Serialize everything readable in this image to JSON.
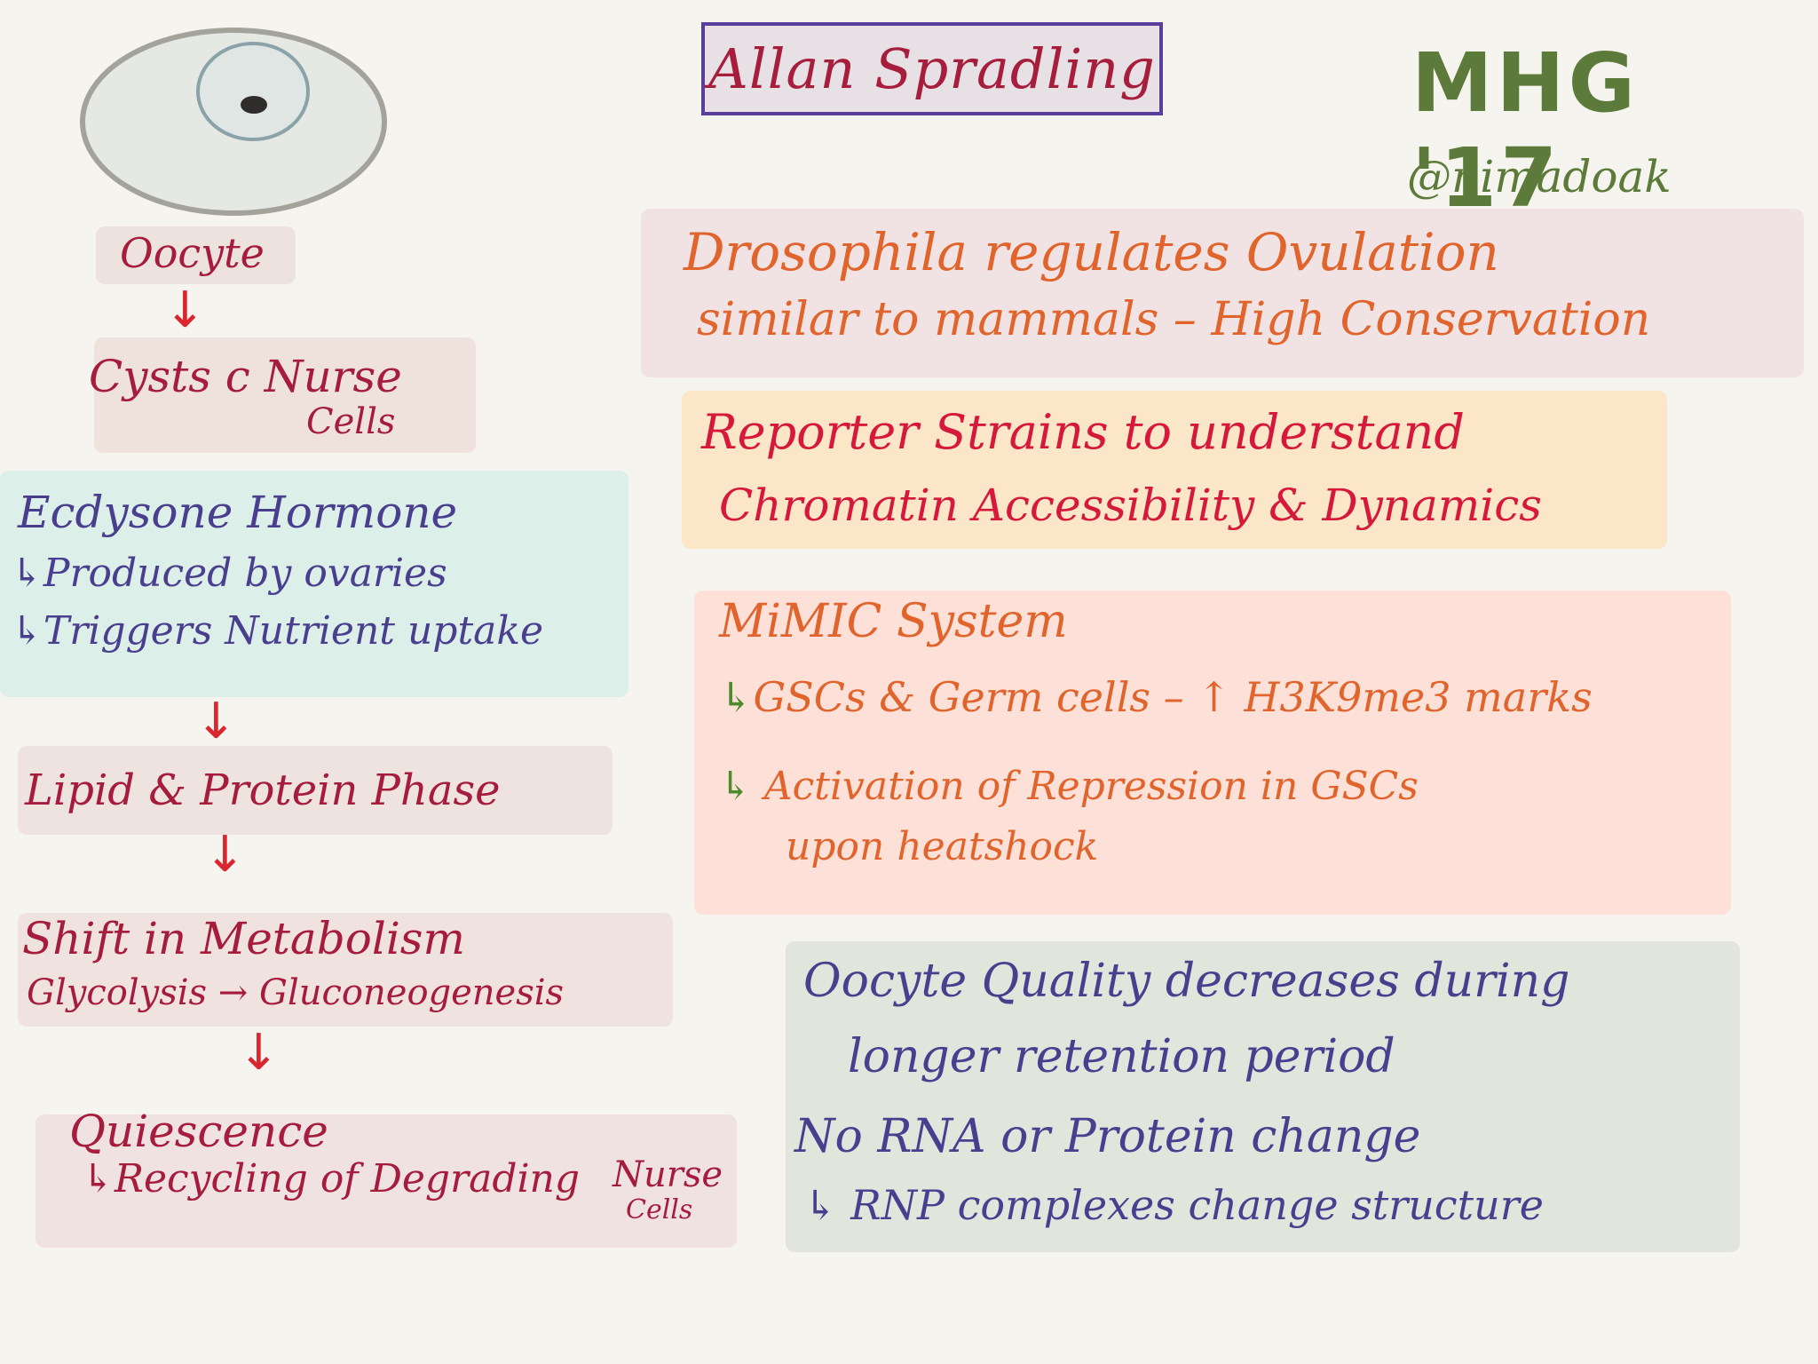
{
  "header": {
    "title": "Allan Spradling",
    "event_tag": "MHG '17",
    "handle": "@nimadoak"
  },
  "flow": {
    "oocyte_label": "Oocyte",
    "arrow_glyph": "↓",
    "cysts_line1": "Cysts c Nurse",
    "cysts_line2": "Cells",
    "ecdysone": {
      "title": "Ecdysone Hormone",
      "items": [
        "↳Produced by ovaries",
        "↳Triggers Nutrient uptake"
      ]
    },
    "lipid": "Lipid & Protein Phase",
    "shift": {
      "title": "Shift in Metabolism",
      "detail": "Glycolysis → Gluconeogenesis"
    },
    "quiescence": {
      "title": "Quiescence",
      "detail": "↳Recycling of Degrading",
      "tail1": "Nurse",
      "tail2": "Cells"
    }
  },
  "notes": {
    "conservation": {
      "line1": "Drosophila regulates Ovulation",
      "line2": "similar to mammals – High Conservation"
    },
    "reporter": {
      "line1": "Reporter Strains to understand",
      "line2": "Chromatin Accessibility & Dynamics"
    },
    "mimic": {
      "title": "MiMIC System",
      "arrow1": "↳",
      "item1": "GSCs & Germ cells – ↑ H3K9me3 marks",
      "arrow2": "↳",
      "item2": "Activation of Repression in GSCs",
      "item2b": "upon heatshock"
    },
    "quality": {
      "line1": "Oocyte Quality decreases during",
      "line2": "longer retention period",
      "line3": "No RNA or Protein change",
      "line4": "↳ RNP complexes change structure"
    }
  },
  "colors": {
    "background": "#f6f4ef",
    "flow_text": "#a51c3c",
    "purple_text": "#4a3f8f",
    "orange_text": "#e0642c",
    "red_text": "#d6183a",
    "green_tag": "#5c7a3a",
    "title_border": "#5a3f9a"
  }
}
